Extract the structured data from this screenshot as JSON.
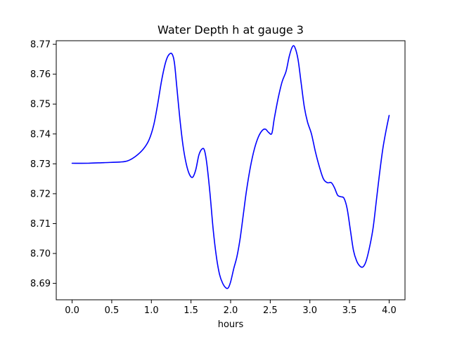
{
  "chart_data": {
    "type": "line",
    "title": "Water Depth h at gauge 3",
    "xlabel": "hours",
    "ylabel": "",
    "xlim": [
      -0.2,
      4.2
    ],
    "ylim": [
      8.6845,
      8.7712
    ],
    "grid": false,
    "xticks": [
      0.0,
      0.5,
      1.0,
      1.5,
      2.0,
      2.5,
      3.0,
      3.5,
      4.0
    ],
    "xtick_labels": [
      "0.0",
      "0.5",
      "1.0",
      "1.5",
      "2.0",
      "2.5",
      "3.0",
      "3.5",
      "4.0"
    ],
    "yticks": [
      8.69,
      8.7,
      8.71,
      8.72,
      8.73,
      8.74,
      8.75,
      8.76,
      8.77
    ],
    "ytick_labels": [
      "8.69",
      "8.70",
      "8.71",
      "8.72",
      "8.73",
      "8.74",
      "8.75",
      "8.76",
      "8.77"
    ],
    "series": [
      {
        "color": "#0000ff",
        "points": [
          [
            0.0,
            8.7302
          ],
          [
            0.2,
            8.7302
          ],
          [
            0.4,
            8.7304
          ],
          [
            0.6,
            8.7306
          ],
          [
            0.7,
            8.731
          ],
          [
            0.8,
            8.7325
          ],
          [
            0.9,
            8.735
          ],
          [
            0.97,
            8.738
          ],
          [
            1.03,
            8.743
          ],
          [
            1.08,
            8.75
          ],
          [
            1.13,
            8.758
          ],
          [
            1.18,
            8.764
          ],
          [
            1.22,
            8.7665
          ],
          [
            1.26,
            8.7668
          ],
          [
            1.29,
            8.764
          ],
          [
            1.32,
            8.756
          ],
          [
            1.36,
            8.745
          ],
          [
            1.4,
            8.736
          ],
          [
            1.44,
            8.73
          ],
          [
            1.48,
            8.7265
          ],
          [
            1.52,
            8.7255
          ],
          [
            1.56,
            8.728
          ],
          [
            1.6,
            8.733
          ],
          [
            1.64,
            8.735
          ],
          [
            1.67,
            8.7345
          ],
          [
            1.7,
            8.73
          ],
          [
            1.74,
            8.72
          ],
          [
            1.78,
            8.708
          ],
          [
            1.82,
            8.699
          ],
          [
            1.86,
            8.693
          ],
          [
            1.9,
            8.69
          ],
          [
            1.94,
            8.6885
          ],
          [
            1.97,
            8.6885
          ],
          [
            2.0,
            8.6905
          ],
          [
            2.04,
            8.695
          ],
          [
            2.08,
            8.699
          ],
          [
            2.12,
            8.705
          ],
          [
            2.16,
            8.713
          ],
          [
            2.2,
            8.721
          ],
          [
            2.25,
            8.729
          ],
          [
            2.3,
            8.735
          ],
          [
            2.35,
            8.739
          ],
          [
            2.4,
            8.7412
          ],
          [
            2.44,
            8.7416
          ],
          [
            2.48,
            8.7405
          ],
          [
            2.52,
            8.7402
          ],
          [
            2.55,
            8.745
          ],
          [
            2.6,
            8.752
          ],
          [
            2.65,
            8.7575
          ],
          [
            2.7,
            8.761
          ],
          [
            2.74,
            8.766
          ],
          [
            2.78,
            8.7692
          ],
          [
            2.81,
            8.769
          ],
          [
            2.85,
            8.765
          ],
          [
            2.89,
            8.757
          ],
          [
            2.93,
            8.749
          ],
          [
            2.97,
            8.744
          ],
          [
            3.02,
            8.74
          ],
          [
            3.07,
            8.734
          ],
          [
            3.12,
            8.729
          ],
          [
            3.17,
            8.725
          ],
          [
            3.22,
            8.7237
          ],
          [
            3.27,
            8.7237
          ],
          [
            3.31,
            8.722
          ],
          [
            3.35,
            8.7195
          ],
          [
            3.39,
            8.719
          ],
          [
            3.43,
            8.7185
          ],
          [
            3.47,
            8.715
          ],
          [
            3.51,
            8.708
          ],
          [
            3.55,
            8.701
          ],
          [
            3.59,
            8.6975
          ],
          [
            3.63,
            8.6958
          ],
          [
            3.67,
            8.6955
          ],
          [
            3.71,
            8.6975
          ],
          [
            3.76,
            8.703
          ],
          [
            3.8,
            8.709
          ],
          [
            3.84,
            8.718
          ],
          [
            3.88,
            8.727
          ],
          [
            3.92,
            8.735
          ],
          [
            3.96,
            8.741
          ],
          [
            4.0,
            8.7462
          ]
        ]
      }
    ]
  }
}
